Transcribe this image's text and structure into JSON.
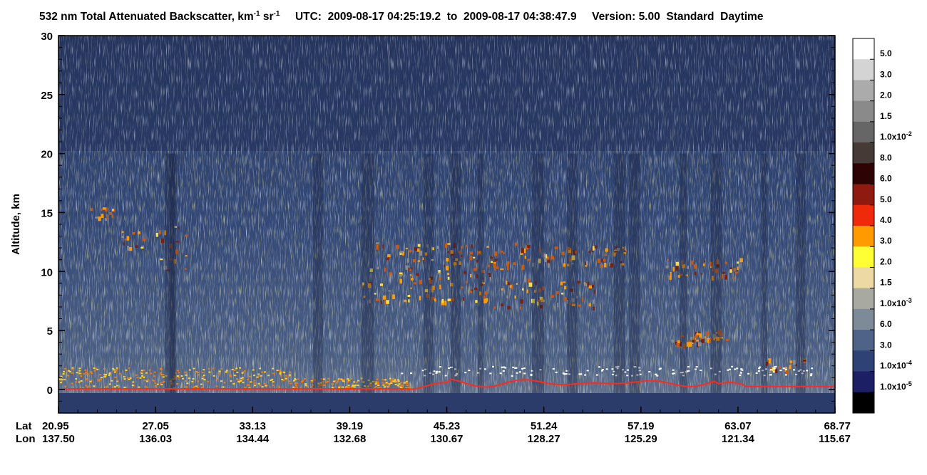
{
  "title": {
    "part1": "532 nm Total Attenuated Backscatter, km",
    "sup1": "-1",
    "part2": " sr",
    "sup2": "-1",
    "utc": "     UTC:  2009-08-17 04:25:19.2  to  2009-08-17 04:38:47.9     Version: 5.00  Standard  Daytime"
  },
  "chart_data": {
    "type": "heatmap",
    "title": "532 nm Total Attenuated Backscatter, km-1 sr-1",
    "ylabel": "Altitude, km",
    "ylim": [
      -2,
      30
    ],
    "y_ticks": [
      0,
      5,
      10,
      15,
      20,
      25,
      30
    ],
    "x_row_labels": [
      "Lat",
      "Lon"
    ],
    "x_ticks": [
      {
        "lat": "20.95",
        "lon": "137.50"
      },
      {
        "lat": "27.05",
        "lon": "136.03"
      },
      {
        "lat": "33.13",
        "lon": "134.44"
      },
      {
        "lat": "39.19",
        "lon": "132.68"
      },
      {
        "lat": "45.23",
        "lon": "130.67"
      },
      {
        "lat": "51.24",
        "lon": "128.27"
      },
      {
        "lat": "57.19",
        "lon": "125.29"
      },
      {
        "lat": "63.07",
        "lon": "121.34"
      },
      {
        "lat": "68.77",
        "lon": "115.67"
      }
    ],
    "colorbar": {
      "colors": [
        "#ffffff",
        "#d4d4d4",
        "#ababab",
        "#8a8a8a",
        "#666666",
        "#453a36",
        "#2e0303",
        "#8e1a10",
        "#ef2a0a",
        "#ff9a00",
        "#ffff33",
        "#ecd9a3",
        "#a8a9a0",
        "#7d8a97",
        "#4f6287",
        "#2e4276",
        "#1d1f65",
        "#000000"
      ],
      "labels": [
        {
          "value": "5.0"
        },
        {
          "value": "3.0"
        },
        {
          "value": "2.0"
        },
        {
          "value": "1.5"
        },
        {
          "value": "1.0x10",
          "exp": "-2"
        },
        {
          "value": "8.0"
        },
        {
          "value": "6.0"
        },
        {
          "value": "5.0"
        },
        {
          "value": "4.0"
        },
        {
          "value": "3.0"
        },
        {
          "value": "2.0"
        },
        {
          "value": "1.5"
        },
        {
          "value": "1.0x10",
          "exp": "-3"
        },
        {
          "value": "6.0"
        },
        {
          "value": "3.0"
        },
        {
          "value": "1.0x10",
          "exp": "-4"
        },
        {
          "value": "1.0x10",
          "exp": "-5"
        }
      ]
    }
  }
}
